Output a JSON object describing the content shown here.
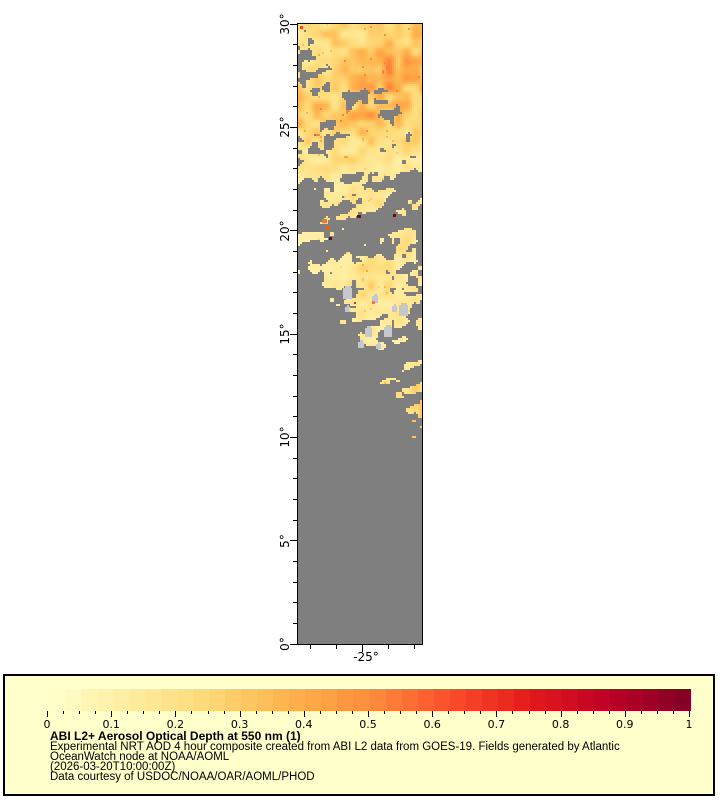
{
  "window": {
    "background": "#ffffff"
  },
  "chart_data": {
    "type": "heatmap",
    "title": "ABI L2+ Aerosol Optical Depth at 550 nm (1)",
    "subtitle": "Experimental NRT AOD 4 hour composite created from ABI L2 data from GOES-19. Fields generated by Atlantic OceanWatch node at NOAA/AOML",
    "timestamp": "(2026-03-20T10:00:00Z)",
    "credit": "Data courtesy of USDOC/NOAA/OAR/AOML/PHOD",
    "variable": "Aerosol Optical Depth at 550 nm",
    "axes": {
      "lat_range": [
        0,
        30
      ],
      "lon_range": [
        -27.4,
        -22.6
      ],
      "x_ticks": {
        "major_lons": [
          -25
        ],
        "major_labels": [
          "-25°"
        ],
        "minor_lons": [
          -27,
          -26,
          -24,
          -23
        ]
      },
      "y_ticks": {
        "major_lats": [
          0,
          5,
          10,
          15,
          20,
          25,
          30
        ],
        "major_labels": [
          "0°",
          "5°",
          "10°",
          "15°",
          "20°",
          "25°",
          "30°"
        ],
        "minor_step_deg": 1
      }
    },
    "colorbar": {
      "range": [
        0,
        1
      ],
      "segments": 40,
      "minor_tick_step": 0.025,
      "label_values": [
        0,
        0.1,
        0.2,
        0.3,
        0.4,
        0.5,
        0.6,
        0.7,
        0.8,
        0.9,
        1
      ],
      "labels": [
        "0",
        "0.1",
        "0.2",
        "0.3",
        "0.4",
        "0.5",
        "0.6",
        "0.7",
        "0.8",
        "0.9",
        "1"
      ],
      "colormap_stops": [
        "#FFFFCC",
        "#FFEDA0",
        "#FED976",
        "#FEB24C",
        "#FD8D3C",
        "#FC4E2A",
        "#E31A1C",
        "#BD0026",
        "#800026"
      ]
    },
    "no_data_color": "#7F7F7F",
    "cloud_color": "#C6C7CB",
    "grid": {
      "description": "Approximate AOD field read from image: 6 longitude columns (west to east) x 30 latitude rows (north 30N to south 0N). coverage = fraction of cell with aerosol retrievals (rest is gray no-data); aod = typical AOD value where present.",
      "coverage": [
        [
          0.55,
          0.8,
          0.85,
          0.9,
          0.85,
          0.9
        ],
        [
          0.3,
          0.7,
          0.85,
          0.9,
          0.9,
          0.85
        ],
        [
          0.5,
          0.45,
          0.8,
          0.9,
          0.9,
          0.85
        ],
        [
          0.7,
          0.6,
          0.35,
          0.45,
          0.8,
          0.85
        ],
        [
          0.8,
          0.7,
          0.75,
          0.8,
          0.45,
          0.7
        ],
        [
          0.7,
          0.45,
          0.7,
          0.75,
          0.7,
          0.65
        ],
        [
          0.5,
          0.5,
          0.65,
          0.7,
          0.75,
          0.7
        ],
        [
          0.6,
          0.65,
          0.5,
          0.55,
          0.5,
          0.3
        ],
        [
          0.3,
          0.5,
          0.6,
          0.6,
          0.5,
          0.3
        ],
        [
          0.3,
          0.5,
          0.4,
          0.25,
          0.2,
          0.4
        ],
        [
          0.5,
          0.45,
          0.25,
          0.2,
          0.5,
          0.6
        ],
        [
          0.35,
          0.5,
          0.6,
          0.65,
          0.55,
          0.45
        ],
        [
          0.2,
          0.55,
          0.7,
          0.75,
          0.6,
          0.3
        ],
        [
          0.1,
          0.3,
          0.55,
          0.65,
          0.45,
          0.5
        ],
        [
          0.0,
          0.1,
          0.3,
          0.55,
          0.5,
          0.5
        ],
        [
          0.0,
          0.0,
          0.15,
          0.35,
          0.4,
          0.3
        ],
        [
          0.0,
          0.0,
          0.0,
          0.15,
          0.4,
          0.4
        ],
        [
          0.0,
          0.0,
          0.0,
          0.1,
          0.45,
          0.55
        ],
        [
          0.0,
          0.0,
          0.0,
          0.0,
          0.15,
          0.5
        ],
        [
          0.0,
          0.0,
          0.0,
          0.0,
          0.05,
          0.4
        ],
        [
          0.0,
          0.0,
          0.0,
          0.0,
          0.0,
          0.25
        ],
        [
          0.0,
          0.0,
          0.0,
          0.0,
          0.0,
          0.08
        ],
        [
          0.0,
          0.0,
          0.0,
          0.0,
          0.0,
          0.14
        ],
        [
          0.0,
          0.0,
          0.0,
          0.0,
          0.0,
          0.0
        ],
        [
          0.0,
          0.0,
          0.0,
          0.0,
          0.0,
          0.0
        ],
        [
          0.0,
          0.0,
          0.0,
          0.0,
          0.0,
          0.0
        ],
        [
          0.0,
          0.0,
          0.0,
          0.0,
          0.0,
          0.0
        ],
        [
          0.0,
          0.0,
          0.0,
          0.0,
          0.0,
          0.0
        ],
        [
          0.0,
          0.0,
          0.0,
          0.0,
          0.0,
          0.0
        ],
        [
          0.0,
          0.0,
          0.0,
          0.0,
          0.0,
          0.0
        ]
      ],
      "aod": [
        [
          0.18,
          0.22,
          0.22,
          0.2,
          0.2,
          0.25
        ],
        [
          0.15,
          0.18,
          0.25,
          0.3,
          0.34,
          0.3
        ],
        [
          0.2,
          0.18,
          0.28,
          0.36,
          0.4,
          0.32
        ],
        [
          0.25,
          0.22,
          0.2,
          0.28,
          0.32,
          0.3
        ],
        [
          0.28,
          0.25,
          0.3,
          0.32,
          0.25,
          0.22
        ],
        [
          0.2,
          0.18,
          0.2,
          0.24,
          0.24,
          0.2
        ],
        [
          0.16,
          0.16,
          0.2,
          0.16,
          0.15,
          0.15
        ],
        [
          0.12,
          0.15,
          0.14,
          0.15,
          0.12,
          0.12
        ],
        [
          0.12,
          0.14,
          0.16,
          0.2,
          0.16,
          0.12
        ],
        [
          0.12,
          0.22,
          0.15,
          0.12,
          0.12,
          0.15
        ],
        [
          0.12,
          0.12,
          0.1,
          0.12,
          0.15,
          0.18
        ],
        [
          0.1,
          0.12,
          0.15,
          0.18,
          0.15,
          0.12
        ],
        [
          0.1,
          0.14,
          0.18,
          0.2,
          0.16,
          0.12
        ],
        [
          0.1,
          0.12,
          0.14,
          0.16,
          0.12,
          0.14
        ],
        [
          0.1,
          0.1,
          0.12,
          0.14,
          0.12,
          0.13
        ],
        [
          0.1,
          0.1,
          0.1,
          0.12,
          0.1,
          0.1
        ],
        [
          0.1,
          0.1,
          0.1,
          0.1,
          0.13,
          0.15
        ],
        [
          0.1,
          0.1,
          0.1,
          0.1,
          0.18,
          0.22
        ],
        [
          0.1,
          0.1,
          0.1,
          0.1,
          0.12,
          0.22
        ],
        [
          0.1,
          0.1,
          0.1,
          0.1,
          0.1,
          0.26
        ],
        [
          0.1,
          0.1,
          0.1,
          0.1,
          0.1,
          0.16
        ],
        [
          0.1,
          0.1,
          0.1,
          0.1,
          0.1,
          0.12
        ],
        [
          0.1,
          0.1,
          0.1,
          0.1,
          0.1,
          0.14
        ],
        [
          0.1,
          0.1,
          0.1,
          0.1,
          0.1,
          0.1
        ],
        [
          0.1,
          0.1,
          0.1,
          0.1,
          0.1,
          0.1
        ],
        [
          0.1,
          0.1,
          0.1,
          0.1,
          0.1,
          0.1
        ],
        [
          0.1,
          0.1,
          0.1,
          0.1,
          0.1,
          0.1
        ],
        [
          0.1,
          0.1,
          0.1,
          0.1,
          0.1,
          0.1
        ],
        [
          0.1,
          0.1,
          0.1,
          0.1,
          0.1,
          0.1
        ],
        [
          0.1,
          0.1,
          0.1,
          0.1,
          0.1,
          0.1
        ]
      ]
    },
    "features": {
      "clouds": [
        [
          45,
          264,
          9,
          11
        ],
        [
          74,
          272,
          6,
          7
        ],
        [
          101,
          281,
          9,
          11
        ],
        [
          94,
          282,
          5,
          6
        ],
        [
          86,
          303,
          8,
          10
        ],
        [
          67,
          304,
          7,
          9
        ],
        [
          60,
          318,
          6,
          6
        ],
        [
          78,
          320,
          5,
          5
        ],
        [
          47,
          283,
          5,
          5
        ]
      ],
      "dots": [
        [
          2,
          2,
          3,
          3,
          "#E05020"
        ],
        [
          24,
          195,
          5,
          4,
          "#F07830"
        ],
        [
          28,
          202,
          4,
          4,
          "#E86020"
        ],
        [
          59,
          191,
          4,
          3,
          "#7A0025"
        ],
        [
          95,
          190,
          3,
          3,
          "#7A0025"
        ],
        [
          31,
          213,
          3,
          3,
          "#7A0025"
        ],
        [
          74,
          277,
          3,
          3,
          "#F07830"
        ],
        [
          56,
          278,
          2,
          2,
          "#E03020"
        ]
      ]
    }
  },
  "legend": {
    "title": "ABI L2+ Aerosol Optical Depth at 550 nm (1)",
    "line1": "Experimental NRT AOD 4 hour composite created from ABI L2 data from GOES-19. Fields generated by Atlantic",
    "line2": "OceanWatch node at NOAA/AOML",
    "line3": "(2026-03-20T10:00:00Z)",
    "line4": "Data courtesy of USDOC/NOAA/OAR/AOML/PHOD"
  }
}
